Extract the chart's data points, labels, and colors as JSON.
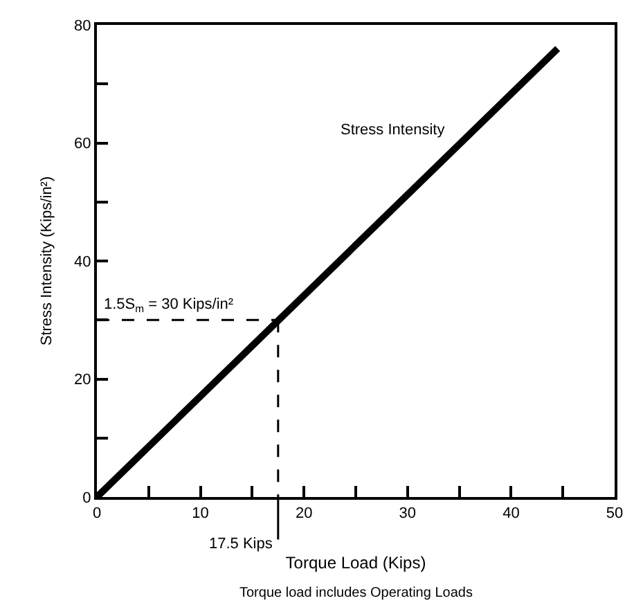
{
  "chart_data": {
    "type": "line",
    "xlabel": "Torque Load (Kips)",
    "ylabel": "Stress Intensity (Kips/in²)",
    "x": [
      0,
      44.5
    ],
    "series": [
      {
        "name": "Stress Intensity",
        "color": "#000000",
        "values": [
          0,
          76
        ]
      }
    ],
    "xlim": [
      0,
      50
    ],
    "ylim": [
      0,
      80
    ],
    "xticks": [
      0,
      {
        "value": 5,
        "label": null
      },
      10,
      {
        "value": 15,
        "label": null
      },
      20,
      {
        "value": 25,
        "label": null
      },
      30,
      {
        "value": 35,
        "label": null
      },
      40,
      {
        "value": 45,
        "label": null
      },
      50
    ],
    "yticks": [
      0,
      {
        "value": 10,
        "label": null
      },
      20,
      {
        "value": 30,
        "label": null
      },
      40,
      {
        "value": 50,
        "label": null
      },
      60,
      {
        "value": 70,
        "label": null
      },
      80
    ],
    "ref_lines": [
      {
        "axis": "y",
        "value": 30,
        "label": "1.5S$_{m}$ = 30 Kips/in²",
        "line_style": "dashed",
        "color": "#000000"
      },
      {
        "axis": "x",
        "value": 17.5,
        "label": "17.5 Kips",
        "line_style": "dashed",
        "color": "#000000"
      }
    ],
    "annotations": [
      "Torque load includes Operating Loads"
    ],
    "grid": false,
    "legend": false,
    "marker": "none",
    "line_style": "solid"
  }
}
